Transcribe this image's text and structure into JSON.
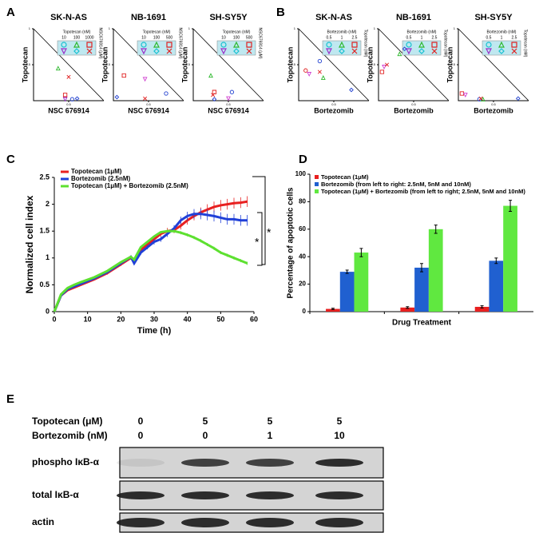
{
  "panel_labels": [
    "A",
    "B",
    "C",
    "D",
    "E"
  ],
  "chart_data": [
    {
      "type": "scatter",
      "title": "SK-N-AS",
      "xlabel": "NSC 676914",
      "ylabel": "Topotecan",
      "xlim": [
        0,
        1
      ],
      "ylim": [
        0,
        1
      ],
      "xticks": [
        0.5
      ],
      "yticks": [
        0.5,
        1
      ],
      "legend_title": "Topotecan (nM)",
      "legend_columns": [
        "10",
        "100",
        "1000"
      ],
      "legend_side_label": "NSC676914 (μM)",
      "x": [
        0.35,
        0.5,
        0.45,
        0.45,
        0.55,
        0.62
      ],
      "y": [
        0.45,
        0.33,
        0.08,
        0.02,
        0.02,
        0.03
      ],
      "markers": [
        "triangle",
        "cross",
        "square",
        "down-triangle",
        "circle",
        "diamond"
      ],
      "colors": [
        "#2db82d",
        "#e02020",
        "#e02020",
        "#9b30c8",
        "#2040d0",
        "#2040d0"
      ]
    },
    {
      "type": "scatter",
      "title": "NB-1691",
      "xlabel": "NSC 676914",
      "ylabel": "Topotecan",
      "xlim": [
        0,
        1
      ],
      "ylim": [
        0,
        1
      ],
      "xticks": [
        0.5
      ],
      "yticks": [
        0.5,
        1
      ],
      "legend_title": "Topotecan (nM)",
      "legend_columns": [
        "10",
        "100",
        "500"
      ],
      "legend_side_label": "NSC676914 (μM)",
      "x": [
        0.15,
        0.45,
        0.75,
        0.45,
        0.05
      ],
      "y": [
        0.35,
        0.3,
        0.1,
        0.03,
        0.05
      ],
      "markers": [
        "square",
        "down-triangle",
        "circle",
        "cross",
        "diamond"
      ],
      "colors": [
        "#e02020",
        "#d040d0",
        "#2040d0",
        "#e02020",
        "#2040d0"
      ]
    },
    {
      "type": "scatter",
      "title": "SH-SY5Y",
      "xlabel": "NSC 676914",
      "ylabel": "Topotecan",
      "xlim": [
        0,
        1
      ],
      "ylim": [
        0,
        1
      ],
      "xticks": [
        0.5
      ],
      "yticks": [
        0.5,
        1
      ],
      "legend_title": "Topotecan (nM)",
      "legend_columns": [
        "10",
        "100",
        "500"
      ],
      "legend_side_label": "NSC676914 (μM)",
      "x": [
        0.25,
        0.3,
        0.28,
        0.55,
        0.5,
        0.3
      ],
      "y": [
        0.35,
        0.12,
        0.08,
        0.12,
        0.03,
        0.02
      ],
      "markers": [
        "triangle",
        "square",
        "cross",
        "circle",
        "down-triangle",
        "diamond"
      ],
      "colors": [
        "#2db82d",
        "#e02020",
        "#e02020",
        "#2040d0",
        "#d040d0",
        "#2040d0"
      ]
    },
    {
      "type": "scatter",
      "title": "SK-N-AS",
      "xlabel": "Bortezomib",
      "ylabel": "Topotecan",
      "xlim": [
        0,
        1
      ],
      "ylim": [
        0,
        1
      ],
      "xticks": [
        0.5
      ],
      "yticks": [
        0.5,
        1
      ],
      "legend_title": "Bortezomib (nM)",
      "legend_columns": [
        "0.5",
        "1",
        "2.5"
      ],
      "legend_side_label": "Topotecan (nM)",
      "x": [
        0.1,
        0.15,
        0.3,
        0.3,
        0.35,
        0.75
      ],
      "y": [
        0.42,
        0.37,
        0.55,
        0.4,
        0.32,
        0.15
      ],
      "markers": [
        "circle",
        "down-triangle",
        "circle",
        "cross",
        "triangle",
        "diamond"
      ],
      "colors": [
        "#e02020",
        "#d040d0",
        "#2040d0",
        "#e02020",
        "#2db82d",
        "#2040d0"
      ]
    },
    {
      "type": "scatter",
      "title": "NB-1691",
      "xlabel": "Bortezomib",
      "ylabel": "Topotecan",
      "xlim": [
        0,
        1
      ],
      "ylim": [
        0,
        1
      ],
      "xticks": [
        0.5
      ],
      "yticks": [
        0.5,
        1
      ],
      "legend_title": "Bortezomib (nM)",
      "legend_columns": [
        "0.5",
        "1",
        "2.5"
      ],
      "legend_side_label": "Topotecan (nM)",
      "x": [
        0.3,
        0.37,
        0.08,
        0.12,
        0.05
      ],
      "y": [
        0.65,
        0.72,
        0.47,
        0.5,
        0.4
      ],
      "markers": [
        "triangle",
        "diamond",
        "down-triangle",
        "cross",
        "square"
      ],
      "colors": [
        "#2db82d",
        "#2040d0",
        "#d040d0",
        "#e02020",
        "#e02020"
      ]
    },
    {
      "type": "scatter",
      "title": "SH-SY5Y",
      "xlabel": "Bortezomib",
      "ylabel": "Topotecan",
      "xlim": [
        0,
        1
      ],
      "ylim": [
        0,
        1
      ],
      "xticks": [
        0.5
      ],
      "yticks": [
        0.5,
        1
      ],
      "legend_title": "Bortezomib (nM)",
      "legend_columns": [
        "0.5",
        "1",
        "2.5"
      ],
      "legend_side_label": "Topotecan (nM)",
      "x": [
        0.05,
        0.1,
        0.3,
        0.35,
        0.85,
        0.32
      ],
      "y": [
        0.1,
        0.08,
        0.02,
        0.02,
        0.03,
        0.03
      ],
      "markers": [
        "square",
        "down-triangle",
        "circle",
        "triangle",
        "diamond",
        "cross"
      ],
      "colors": [
        "#e02020",
        "#d040d0",
        "#2040d0",
        "#2db82d",
        "#2040d0",
        "#e02020"
      ]
    },
    {
      "type": "line",
      "xlabel": "Time (h)",
      "ylabel": "Normalized cell index",
      "xlim": [
        0,
        60
      ],
      "ylim": [
        0,
        2.5
      ],
      "xticks": [
        0,
        10,
        20,
        30,
        40,
        50,
        60
      ],
      "yticks": [
        0,
        0.5,
        1,
        1.5,
        2,
        2.5
      ],
      "annotations": [
        "*",
        "*"
      ],
      "x": [
        0,
        2,
        4,
        6,
        8,
        12,
        16,
        20,
        23,
        24,
        26,
        28,
        30,
        32,
        34,
        36,
        38,
        40,
        42,
        44,
        46,
        48,
        50,
        52,
        54,
        56,
        58
      ],
      "series": [
        {
          "name": "Topotecan (1μM)",
          "color": "#e82020",
          "values": [
            0,
            0.3,
            0.4,
            0.45,
            0.5,
            0.6,
            0.72,
            0.88,
            1.0,
            0.95,
            1.15,
            1.25,
            1.35,
            1.45,
            1.5,
            1.52,
            1.6,
            1.7,
            1.78,
            1.85,
            1.9,
            1.95,
            1.98,
            2.0,
            2.02,
            2.03,
            2.05
          ],
          "errors": [
            0,
            0.02,
            0.02,
            0.02,
            0.02,
            0.02,
            0.03,
            0.03,
            0.03,
            0.03,
            0.04,
            0.04,
            0.05,
            0.05,
            0.06,
            0.06,
            0.07,
            0.08,
            0.08,
            0.09,
            0.1,
            0.1,
            0.1,
            0.1,
            0.1,
            0.1,
            0.1
          ]
        },
        {
          "name": "Bortezomib (2.5nM)",
          "color": "#2040d8",
          "values": [
            0,
            0.3,
            0.42,
            0.47,
            0.52,
            0.62,
            0.74,
            0.9,
            1.02,
            0.9,
            1.1,
            1.2,
            1.3,
            1.35,
            1.45,
            1.55,
            1.7,
            1.78,
            1.82,
            1.82,
            1.8,
            1.78,
            1.75,
            1.72,
            1.72,
            1.7,
            1.7
          ],
          "errors": [
            0,
            0.02,
            0.02,
            0.02,
            0.02,
            0.02,
            0.03,
            0.03,
            0.03,
            0.03,
            0.04,
            0.04,
            0.05,
            0.05,
            0.06,
            0.06,
            0.07,
            0.08,
            0.09,
            0.1,
            0.1,
            0.1,
            0.1,
            0.1,
            0.1,
            0.1,
            0.1
          ]
        },
        {
          "name": "Topotecan (1μM) + Bortezomib (2.5nM)",
          "color": "#5de030",
          "values": [
            0,
            0.32,
            0.44,
            0.5,
            0.55,
            0.64,
            0.76,
            0.92,
            1.02,
            0.97,
            1.2,
            1.3,
            1.4,
            1.48,
            1.5,
            1.5,
            1.47,
            1.43,
            1.38,
            1.32,
            1.25,
            1.18,
            1.1,
            1.05,
            1.0,
            0.95,
            0.9
          ],
          "errors": [
            0,
            0.01,
            0.01,
            0.01,
            0.01,
            0.01,
            0.02,
            0.02,
            0.02,
            0.02,
            0.02,
            0.02,
            0.02,
            0.02,
            0.03,
            0.03,
            0.03,
            0.03,
            0.03,
            0.03,
            0.03,
            0.03,
            0.03,
            0.03,
            0.03,
            0.03,
            0.03
          ]
        }
      ]
    },
    {
      "type": "bar",
      "xlabel": "Drug Treatment",
      "ylabel": "Percentage of apoptotic cells",
      "ylim": [
        0,
        100
      ],
      "yticks": [
        0,
        20,
        40,
        60,
        80,
        100
      ],
      "categories": [
        null,
        null,
        null
      ],
      "series": [
        {
          "name": "Topotecan (1μM)",
          "color": "#e82020",
          "values": [
            2,
            3,
            3.5
          ],
          "errors": [
            0.5,
            0.6,
            0.8
          ]
        },
        {
          "name": "Bortezomib (from left to right: 2.5nM, 5nM and 10nM)",
          "color": "#2060d0",
          "values": [
            29,
            32,
            37
          ],
          "errors": [
            1.2,
            3,
            2
          ]
        },
        {
          "name": "Topotecan  (1μM) + Bortezomib (from left to right; 2.5nM, 5nM and 10nM)",
          "color": "#60e840",
          "values": [
            43,
            60,
            77
          ],
          "errors": [
            3,
            3,
            4
          ]
        }
      ]
    }
  ],
  "blot": {
    "rows": [
      {
        "label": "Topotecan (μM)",
        "values": [
          "0",
          "5",
          "5",
          "5"
        ]
      },
      {
        "label": "Bortezomib (nM)",
        "values": [
          "0",
          "0",
          "1",
          "10"
        ]
      }
    ],
    "bands": [
      "phospho IκB-α",
      "total IκB-α",
      "actin"
    ]
  }
}
